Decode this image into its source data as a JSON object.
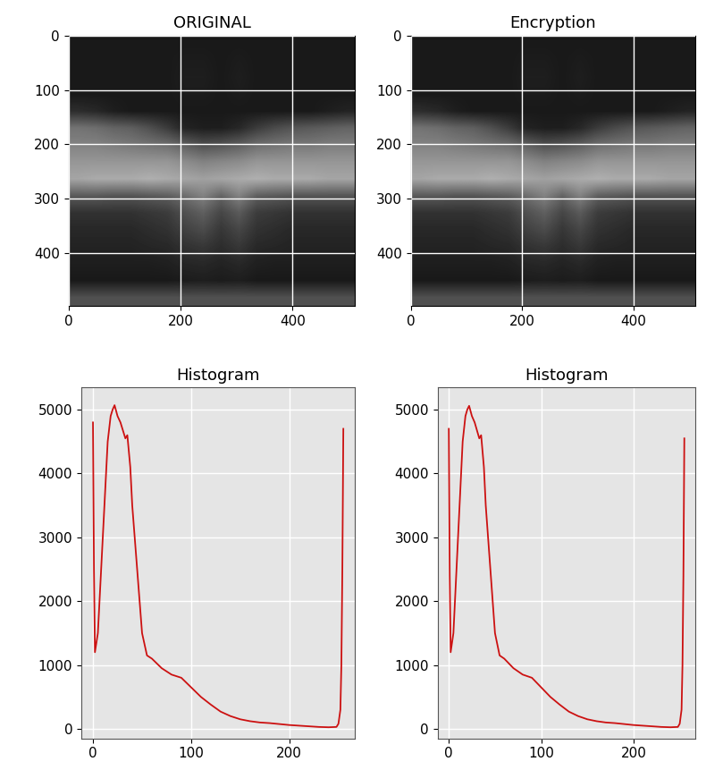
{
  "chart_data": [
    {
      "type": "heatmap",
      "title": "ORIGINAL",
      "xlim": [
        0,
        512
      ],
      "ylim": [
        496,
        0
      ],
      "xticks": [
        0,
        200,
        400
      ],
      "yticks": [
        0,
        100,
        200,
        300,
        400
      ],
      "grid": true,
      "color_range": [
        0,
        255
      ],
      "cells": [
        [
          25,
          25,
          25,
          25,
          25,
          25,
          25,
          25,
          25,
          25,
          25,
          25,
          25,
          25,
          25,
          25
        ],
        [
          25,
          25,
          25,
          25,
          25,
          25,
          28,
          28,
          25,
          28,
          25,
          25,
          25,
          25,
          25,
          25
        ],
        [
          25,
          25,
          25,
          25,
          25,
          25,
          30,
          30,
          25,
          30,
          25,
          25,
          25,
          25,
          25,
          25
        ],
        [
          25,
          25,
          25,
          25,
          25,
          25,
          28,
          28,
          25,
          28,
          25,
          25,
          25,
          25,
          25,
          25
        ],
        [
          45,
          40,
          30,
          25,
          25,
          25,
          25,
          25,
          25,
          25,
          25,
          25,
          25,
          25,
          30,
          35
        ],
        [
          115,
          110,
          100,
          95,
          80,
          60,
          35,
          30,
          30,
          40,
          60,
          75,
          85,
          90,
          95,
          100
        ],
        [
          130,
          130,
          125,
          120,
          115,
          110,
          95,
          80,
          85,
          95,
          110,
          115,
          120,
          120,
          125,
          125
        ],
        [
          150,
          150,
          150,
          150,
          150,
          150,
          140,
          130,
          135,
          140,
          150,
          150,
          150,
          150,
          150,
          150
        ],
        [
          165,
          170,
          170,
          170,
          175,
          170,
          165,
          160,
          165,
          170,
          175,
          170,
          170,
          170,
          165,
          165
        ],
        [
          90,
          90,
          85,
          85,
          90,
          95,
          110,
          130,
          100,
          130,
          95,
          90,
          85,
          85,
          85,
          85
        ],
        [
          50,
          50,
          50,
          50,
          55,
          60,
          80,
          95,
          70,
          90,
          60,
          55,
          50,
          50,
          50,
          50
        ],
        [
          40,
          40,
          40,
          40,
          45,
          50,
          65,
          75,
          55,
          70,
          50,
          45,
          40,
          40,
          40,
          40
        ],
        [
          35,
          35,
          35,
          35,
          38,
          40,
          50,
          55,
          45,
          55,
          40,
          38,
          35,
          35,
          35,
          35
        ],
        [
          30,
          30,
          30,
          30,
          30,
          32,
          38,
          40,
          35,
          40,
          32,
          30,
          30,
          30,
          30,
          30
        ],
        [
          25,
          25,
          25,
          25,
          25,
          25,
          28,
          30,
          28,
          30,
          25,
          25,
          25,
          25,
          25,
          25
        ],
        [
          80,
          80,
          80,
          80,
          80,
          80,
          80,
          80,
          80,
          80,
          80,
          80,
          80,
          80,
          80,
          80
        ]
      ]
    },
    {
      "type": "heatmap",
      "title": "Encryption",
      "xlim": [
        0,
        512
      ],
      "ylim": [
        496,
        0
      ],
      "xticks": [
        0,
        200,
        400
      ],
      "yticks": [
        0,
        100,
        200,
        300,
        400
      ],
      "grid": true,
      "color_range": [
        0,
        255
      ],
      "cells": [
        [
          25,
          25,
          25,
          25,
          25,
          25,
          25,
          25,
          25,
          25,
          25,
          25,
          25,
          25,
          25,
          25
        ],
        [
          25,
          25,
          25,
          25,
          25,
          25,
          28,
          28,
          25,
          28,
          25,
          25,
          25,
          25,
          25,
          25
        ],
        [
          25,
          25,
          25,
          25,
          25,
          25,
          30,
          30,
          25,
          30,
          25,
          25,
          25,
          25,
          25,
          25
        ],
        [
          25,
          25,
          25,
          25,
          25,
          25,
          28,
          28,
          25,
          28,
          25,
          25,
          25,
          25,
          25,
          25
        ],
        [
          45,
          40,
          30,
          25,
          25,
          25,
          25,
          25,
          25,
          25,
          25,
          25,
          25,
          25,
          30,
          35
        ],
        [
          115,
          110,
          100,
          95,
          80,
          60,
          35,
          30,
          30,
          40,
          60,
          75,
          85,
          90,
          95,
          100
        ],
        [
          130,
          130,
          125,
          120,
          115,
          110,
          95,
          80,
          85,
          95,
          110,
          115,
          120,
          120,
          125,
          125
        ],
        [
          150,
          150,
          150,
          150,
          150,
          150,
          140,
          130,
          135,
          140,
          150,
          150,
          150,
          150,
          150,
          150
        ],
        [
          165,
          170,
          170,
          170,
          175,
          170,
          165,
          160,
          165,
          170,
          175,
          170,
          170,
          170,
          165,
          165
        ],
        [
          90,
          90,
          85,
          85,
          90,
          95,
          110,
          130,
          100,
          130,
          95,
          90,
          85,
          85,
          85,
          85
        ],
        [
          50,
          50,
          50,
          50,
          55,
          60,
          80,
          95,
          70,
          90,
          60,
          55,
          50,
          50,
          50,
          50
        ],
        [
          40,
          40,
          40,
          40,
          45,
          50,
          65,
          75,
          55,
          70,
          50,
          45,
          40,
          40,
          40,
          40
        ],
        [
          35,
          35,
          35,
          35,
          38,
          40,
          50,
          55,
          45,
          55,
          40,
          38,
          35,
          35,
          35,
          35
        ],
        [
          30,
          30,
          30,
          30,
          30,
          32,
          38,
          40,
          35,
          40,
          32,
          30,
          30,
          30,
          30,
          30
        ],
        [
          25,
          25,
          25,
          25,
          25,
          25,
          28,
          30,
          28,
          30,
          25,
          25,
          25,
          25,
          25,
          25
        ],
        [
          80,
          80,
          80,
          80,
          80,
          80,
          80,
          80,
          80,
          80,
          80,
          80,
          80,
          80,
          80,
          80
        ]
      ]
    },
    {
      "type": "line",
      "title": "Histogram",
      "color": "#cc1111",
      "xlim": [
        -12,
        267
      ],
      "ylim": [
        -150,
        5350
      ],
      "xticks": [
        0,
        100,
        200
      ],
      "yticks": [
        0,
        1000,
        2000,
        3000,
        4000,
        5000
      ],
      "grid": true,
      "x": [
        0,
        1,
        2,
        5,
        10,
        15,
        18,
        20,
        22,
        25,
        28,
        30,
        33,
        35,
        38,
        40,
        45,
        50,
        55,
        60,
        70,
        80,
        90,
        100,
        110,
        120,
        130,
        140,
        150,
        160,
        170,
        180,
        190,
        200,
        210,
        220,
        230,
        240,
        248,
        250,
        252,
        253,
        254,
        255
      ],
      "values": [
        4800,
        2500,
        1200,
        1500,
        3000,
        4500,
        4900,
        5000,
        5070,
        4900,
        4800,
        4700,
        4550,
        4600,
        4100,
        3500,
        2500,
        1500,
        1150,
        1100,
        950,
        850,
        800,
        650,
        500,
        380,
        270,
        200,
        150,
        120,
        100,
        90,
        75,
        60,
        50,
        40,
        30,
        25,
        30,
        80,
        300,
        1000,
        2500,
        4700
      ]
    },
    {
      "type": "line",
      "title": "Histogram",
      "color": "#cc1111",
      "xlim": [
        -12,
        267
      ],
      "ylim": [
        -150,
        5350
      ],
      "xticks": [
        0,
        100,
        200
      ],
      "yticks": [
        0,
        1000,
        2000,
        3000,
        4000,
        5000
      ],
      "grid": true,
      "x": [
        0,
        1,
        2,
        5,
        10,
        15,
        18,
        20,
        22,
        25,
        28,
        30,
        33,
        35,
        38,
        40,
        45,
        50,
        55,
        60,
        70,
        80,
        90,
        100,
        110,
        120,
        130,
        140,
        150,
        160,
        170,
        180,
        190,
        200,
        210,
        220,
        230,
        240,
        248,
        250,
        252,
        253,
        254,
        255
      ],
      "values": [
        4700,
        2400,
        1200,
        1500,
        3000,
        4500,
        4900,
        5000,
        5060,
        4900,
        4800,
        4700,
        4550,
        4600,
        4100,
        3500,
        2500,
        1500,
        1150,
        1100,
        950,
        850,
        800,
        650,
        500,
        380,
        270,
        200,
        150,
        120,
        100,
        90,
        75,
        60,
        50,
        40,
        30,
        25,
        30,
        80,
        300,
        1000,
        2400,
        4550
      ]
    }
  ]
}
